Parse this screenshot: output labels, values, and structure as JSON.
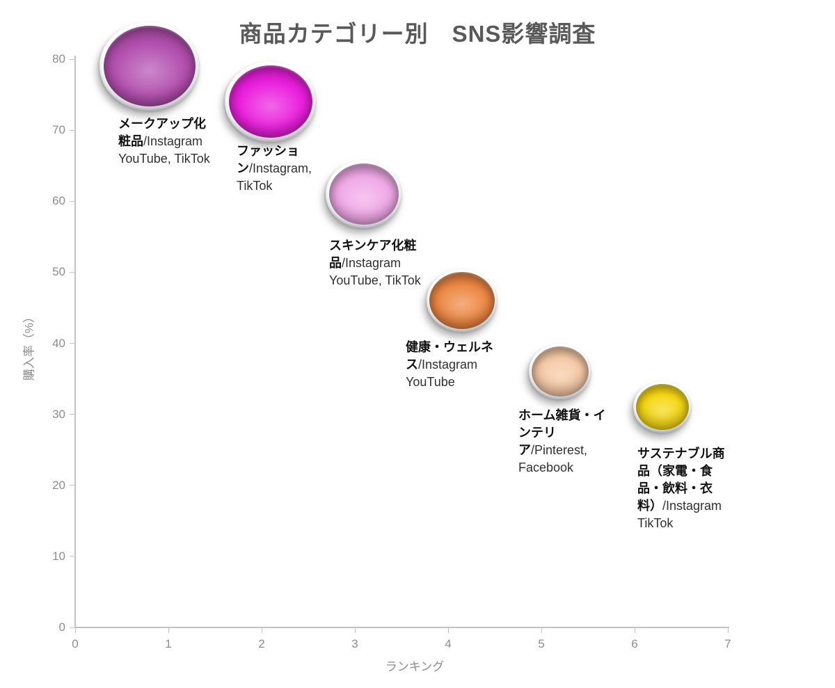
{
  "title": "商品カテゴリー別　SNS影響調査",
  "axes": {
    "x_title": "ランキング",
    "y_title": "購入率（%）",
    "x_ticks": [
      "0",
      "1",
      "2",
      "3",
      "4",
      "5",
      "6",
      "7"
    ],
    "y_ticks": [
      "0",
      "10",
      "20",
      "30",
      "40",
      "50",
      "60",
      "70",
      "80"
    ]
  },
  "chart_data": {
    "type": "scatter",
    "subtype": "bubble",
    "title": "商品カテゴリー別　SNS影響調査",
    "xlabel": "ランキング",
    "ylabel": "購入率（%）",
    "xlim": [
      0,
      7
    ],
    "ylim": [
      0,
      80
    ],
    "grid": false,
    "legend": false,
    "points": [
      {
        "ranking": 1,
        "category": "メークアップ化粧品",
        "platforms": "/Instagram YouTube, TikTok",
        "x": 0.8,
        "y": 79,
        "size": 72,
        "color": "#b350af"
      },
      {
        "ranking": 2,
        "category": "ファッション",
        "platforms": "/Instagram, TikTok",
        "x": 2.1,
        "y": 74,
        "size": 66,
        "color": "#ea1fdd"
      },
      {
        "ranking": 3,
        "category": "スキンケア化粧品",
        "platforms": "/Instagram YouTube, TikTok",
        "x": 3.1,
        "y": 61,
        "size": 55,
        "color": "#f0a9e7"
      },
      {
        "ranking": 4,
        "category": "健康・ウェルネス",
        "platforms": "/Instagram YouTube",
        "x": 4.15,
        "y": 46,
        "size": 51,
        "color": "#ed8843"
      },
      {
        "ranking": 5,
        "category": "ホーム雑貨・インテリア",
        "platforms": "/Pinterest, Facebook",
        "x": 5.2,
        "y": 36,
        "size": 45,
        "color": "#f6caa6"
      },
      {
        "ranking": 6,
        "category": "サステナブル商品（家電・食品・飲料・衣料）",
        "platforms": "/Instagram TikTok",
        "x": 6.3,
        "y": 31,
        "size": 42,
        "color": "#f6d813"
      }
    ]
  }
}
